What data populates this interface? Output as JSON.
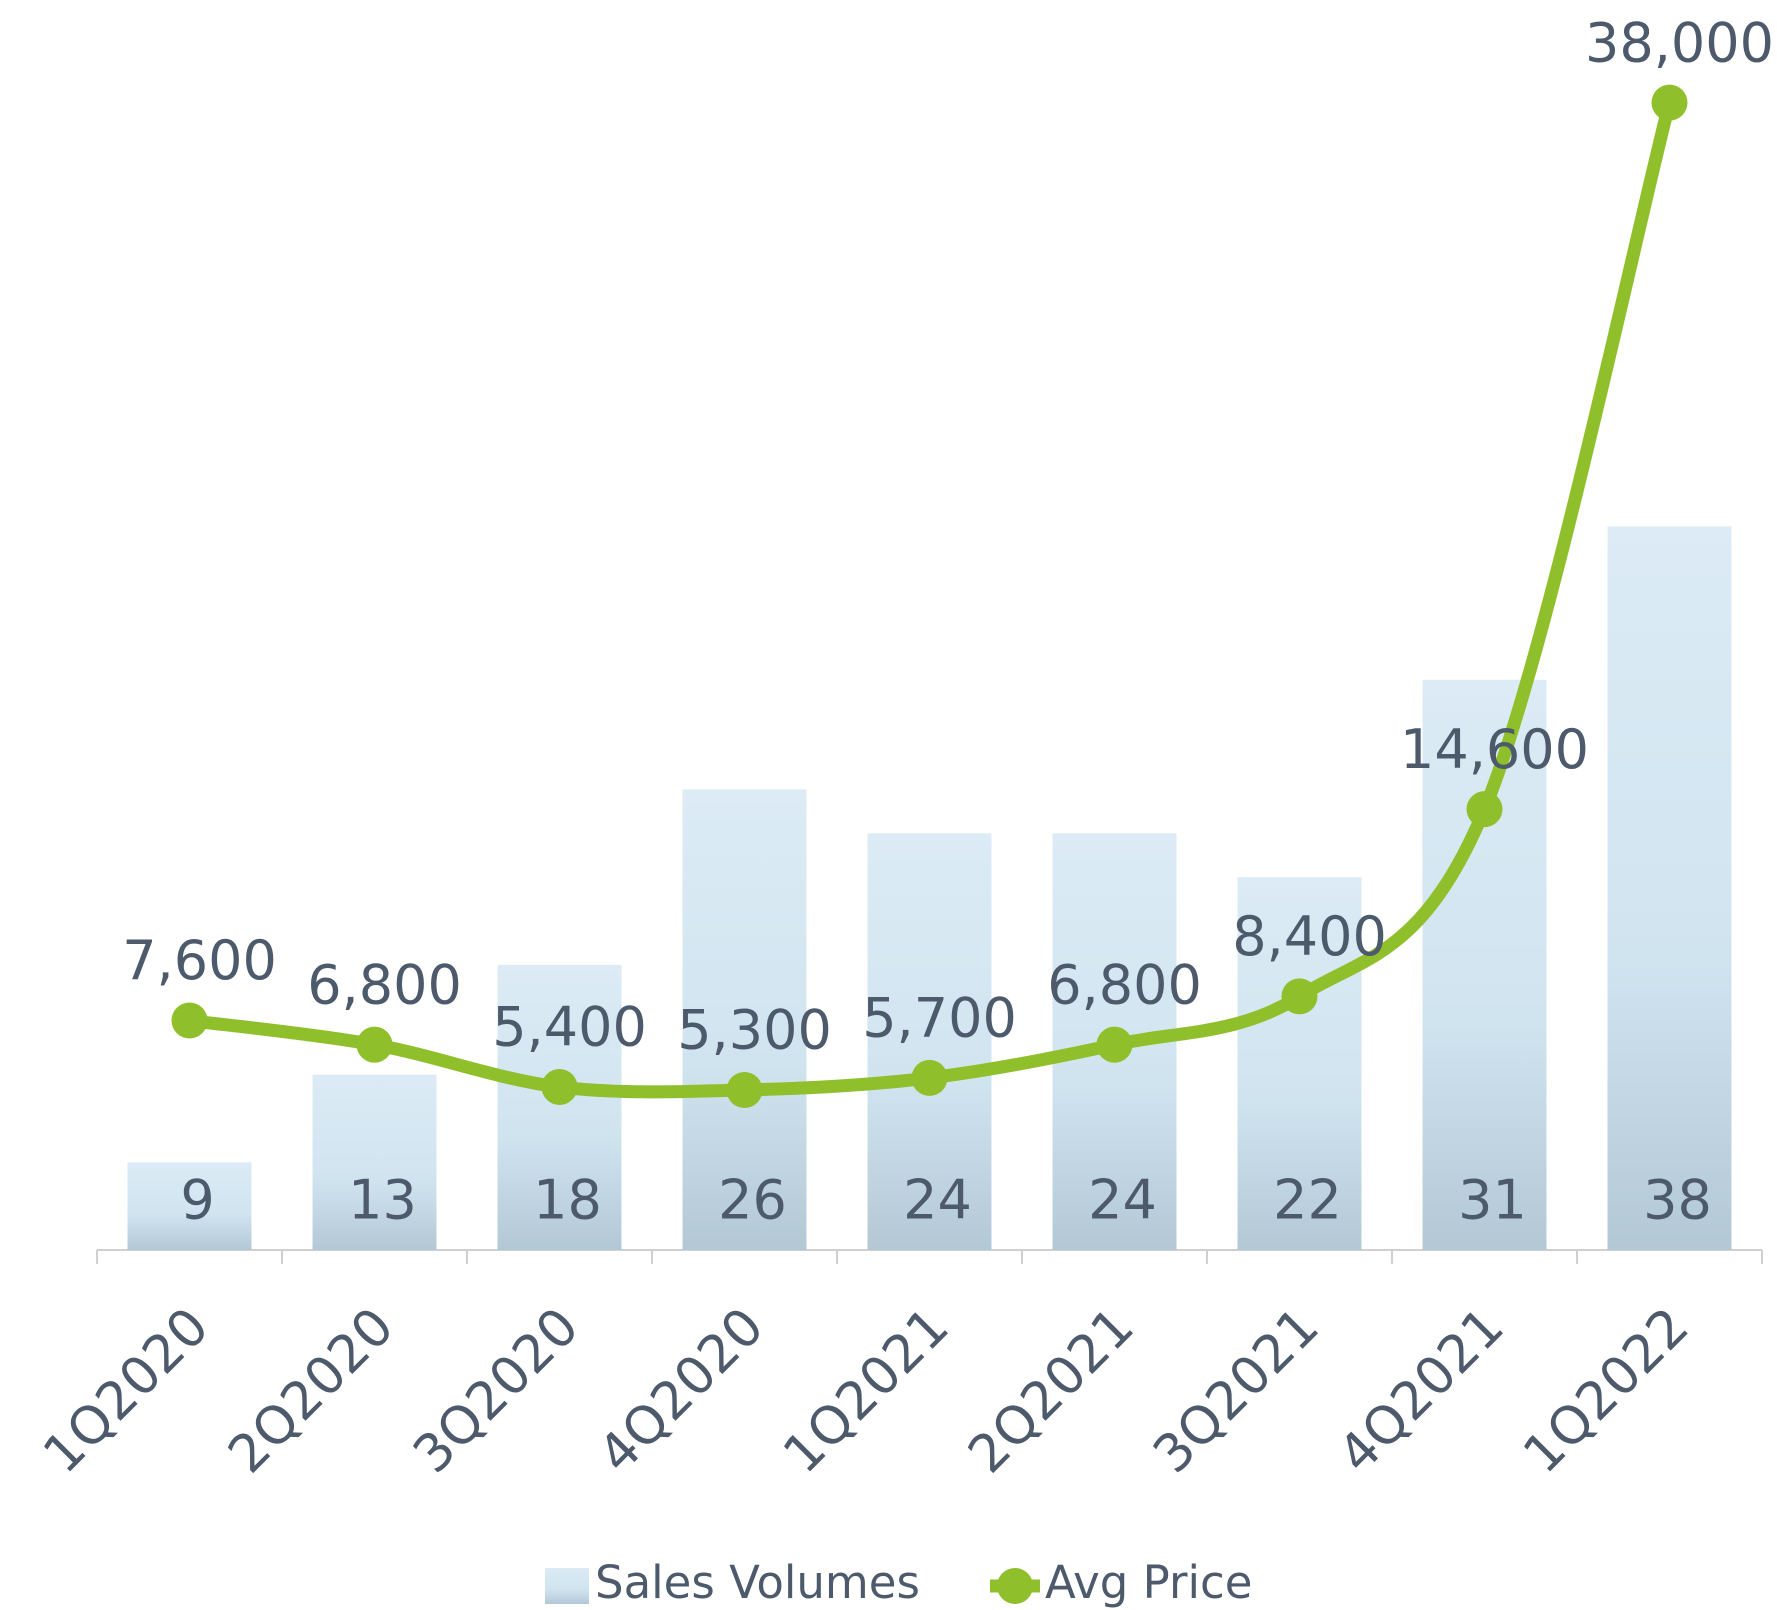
{
  "chart_data": {
    "type": "bar_line",
    "categories": [
      "1Q2020",
      "2Q2020",
      "3Q2020",
      "4Q2020",
      "1Q2021",
      "2Q2021",
      "3Q2021",
      "4Q2021",
      "1Q2022"
    ],
    "series": [
      {
        "name": "Sales Volumes",
        "type": "bar",
        "color": "#d3e6f2",
        "values": [
          9,
          13,
          18,
          26,
          24,
          24,
          22,
          31,
          38
        ]
      },
      {
        "name": "Avg Price",
        "type": "line",
        "axis": "y2",
        "color": "#8fbf2a",
        "values": [
          7600,
          6800,
          5400,
          5300,
          5700,
          6800,
          8400,
          14600,
          38000
        ],
        "value_labels": [
          "7,600",
          "6,800",
          "5,400",
          "5,300",
          "5,700",
          "6,800",
          "8,400",
          "14,600",
          "38,000"
        ]
      }
    ],
    "ylim": [
      5,
      62
    ],
    "y2lim": [
      0,
      41400
    ],
    "legend": "bottom"
  }
}
